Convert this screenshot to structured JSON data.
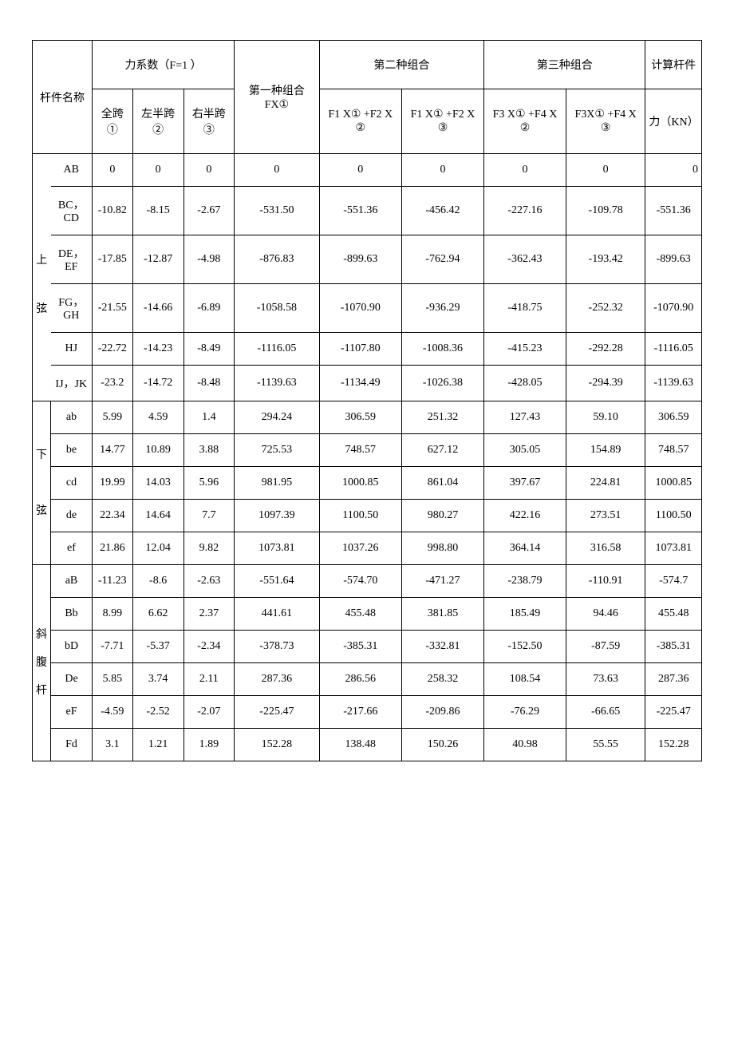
{
  "headers": {
    "force_coeff": "力系数（F=1 ）",
    "second_combo": "第二种组合",
    "third_combo": "第三种组合",
    "calc_member": "计算杆件",
    "member_name": "杆件名称",
    "first_combo": "第一种组合FX①",
    "full_span": "全跨①",
    "left_half": "左半跨②",
    "right_half": "右半跨③",
    "f1x1_f2x2": "F1 X① +F2 X ②",
    "f1x1_f2x3": "F1 X① +F2 X ③",
    "f3x1_f4x2": "F3 X① +F4 X ②",
    "f3x1_f4x3": "F3X① +F4 X ③",
    "force_kn": "力（KN）"
  },
  "groups": {
    "upper": "上",
    "chord": "弦",
    "lower": "下弦",
    "diag": "斜腹杆"
  },
  "rows": [
    {
      "g": "",
      "name": "AB",
      "c1": "0",
      "c2": "0",
      "c3": "0",
      "c4": "0",
      "c5": "0",
      "c6": "0",
      "c7": "0",
      "c8": "0",
      "c9": "0"
    },
    {
      "g": "",
      "name": "BC，CD",
      "c1": "-10.82",
      "c2": "-8.15",
      "c3": "-2.67",
      "c4": "-531.50",
      "c5": "-551.36",
      "c6": "-456.42",
      "c7": "-227.16",
      "c8": "-109.78",
      "c9": "-551.36"
    },
    {
      "g": "上",
      "name": "DE，EF",
      "c1": "-17.85",
      "c2": "-12.87",
      "c3": "-4.98",
      "c4": "-876.83",
      "c5": "-899.63",
      "c6": "-762.94",
      "c7": "-362.43",
      "c8": "-193.42",
      "c9": "-899.63"
    },
    {
      "g": "弦",
      "name": "FG，GH",
      "c1": "-21.55",
      "c2": "-14.66",
      "c3": "-6.89",
      "c4": "-1058.58",
      "c5": "-1070.90",
      "c6": "-936.29",
      "c7": "-418.75",
      "c8": "-252.32",
      "c9": "-1070.90"
    },
    {
      "g": "",
      "name": "HJ",
      "c1": "-22.72",
      "c2": "-14.23",
      "c3": "-8.49",
      "c4": "-1116.05",
      "c5": "-1107.80",
      "c6": "-1008.36",
      "c7": "-415.23",
      "c8": "-292.28",
      "c9": "-1116.05"
    },
    {
      "g": "",
      "name": "IJ，JK",
      "c1": "-23.2",
      "c2": "-14.72",
      "c3": "-8.48",
      "c4": "-1139.63",
      "c5": "-1134.49",
      "c6": "-1026.38",
      "c7": "-428.05",
      "c8": "-294.39",
      "c9": "-1139.63"
    },
    {
      "g": "",
      "name": "ab",
      "c1": "5.99",
      "c2": "4.59",
      "c3": "1.4",
      "c4": "294.24",
      "c5": "306.59",
      "c6": "251.32",
      "c7": "127.43",
      "c8": "59.10",
      "c9": "306.59"
    },
    {
      "g": "",
      "name": "be",
      "c1": "14.77",
      "c2": "10.89",
      "c3": "3.88",
      "c4": "725.53",
      "c5": "748.57",
      "c6": "627.12",
      "c7": "305.05",
      "c8": "154.89",
      "c9": "748.57"
    },
    {
      "g": "",
      "name": "cd",
      "c1": "19.99",
      "c2": "14.03",
      "c3": "5.96",
      "c4": "981.95",
      "c5": "1000.85",
      "c6": "861.04",
      "c7": "397.67",
      "c8": "224.81",
      "c9": "1000.85"
    },
    {
      "g": "",
      "name": "de",
      "c1": "22.34",
      "c2": "14.64",
      "c3": "7.7",
      "c4": "1097.39",
      "c5": "1100.50",
      "c6": "980.27",
      "c7": "422.16",
      "c8": "273.51",
      "c9": "1100.50"
    },
    {
      "g": "",
      "name": "ef",
      "c1": "21.86",
      "c2": "12.04",
      "c3": "9.82",
      "c4": "1073.81",
      "c5": "1037.26",
      "c6": "998.80",
      "c7": "364.14",
      "c8": "316.58",
      "c9": "1073.81"
    },
    {
      "g": "",
      "name": "aB",
      "c1": "-11.23",
      "c2": "-8.6",
      "c3": "-2.63",
      "c4": "-551.64",
      "c5": "-574.70",
      "c6": "-471.27",
      "c7": "-238.79",
      "c8": "-110.91",
      "c9": "-574.7"
    },
    {
      "g": "",
      "name": "Bb",
      "c1": "8.99",
      "c2": "6.62",
      "c3": "2.37",
      "c4": "441.61",
      "c5": "455.48",
      "c6": "381.85",
      "c7": "185.49",
      "c8": "94.46",
      "c9": "455.48"
    },
    {
      "g": "",
      "name": "bD",
      "c1": "-7.71",
      "c2": "-5.37",
      "c3": "-2.34",
      "c4": "-378.73",
      "c5": "-385.31",
      "c6": "-332.81",
      "c7": "-152.50",
      "c8": "-87.59",
      "c9": "-385.31"
    },
    {
      "g": "",
      "name": "De",
      "c1": "5.85",
      "c2": "3.74",
      "c3": "2.11",
      "c4": "287.36",
      "c5": "286.56",
      "c6": "258.32",
      "c7": "108.54",
      "c8": "73.63",
      "c9": "287.36"
    },
    {
      "g": "",
      "name": "eF",
      "c1": "-4.59",
      "c2": "-2.52",
      "c3": "-2.07",
      "c4": "-225.47",
      "c5": "-217.66",
      "c6": "-209.86",
      "c7": "-76.29",
      "c8": "-66.65",
      "c9": "-225.47"
    },
    {
      "g": "",
      "name": "Fd",
      "c1": "3.1",
      "c2": "1.21",
      "c3": "1.89",
      "c4": "152.28",
      "c5": "138.48",
      "c6": "150.26",
      "c7": "40.98",
      "c8": "55.55",
      "c9": "152.28"
    }
  ]
}
